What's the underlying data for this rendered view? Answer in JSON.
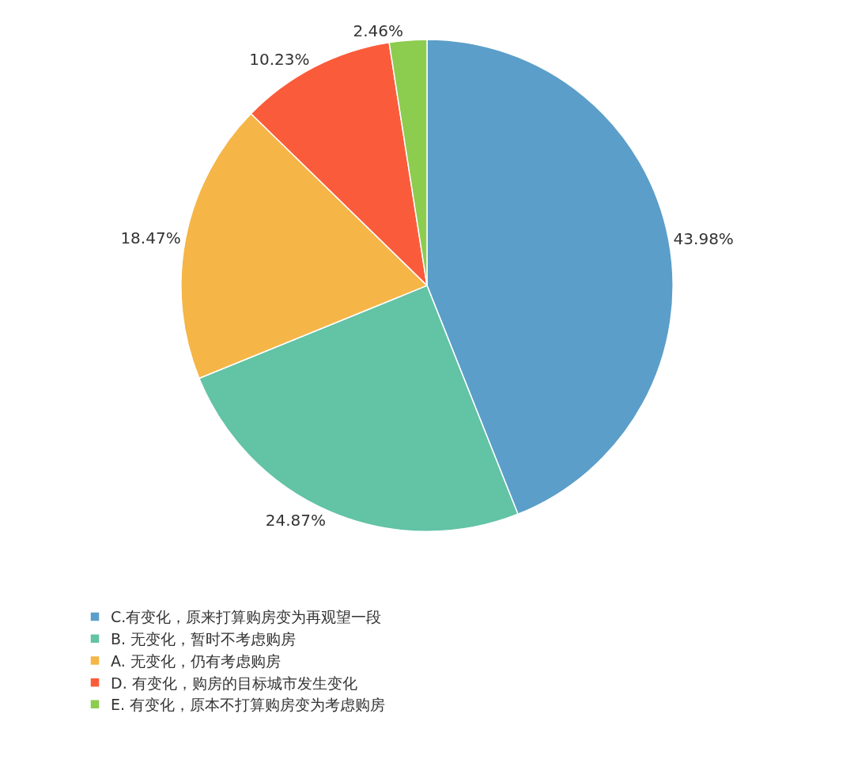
{
  "chart_data": {
    "type": "pie",
    "categories": [
      "C.有变化，原来打算购房变为再观望一段",
      "B. 无变化，暂时不考虑购房",
      "A. 无变化，仍有考虑购房",
      "D. 有变化，购房的目标城市发生变化",
      "E. 有变化，原本不打算购房变为考虑购房"
    ],
    "values": [
      43.98,
      24.87,
      18.47,
      10.23,
      2.46
    ],
    "value_labels": [
      "43.98%",
      "24.87%",
      "18.47%",
      "10.23%",
      "2.46%"
    ],
    "colors": [
      "#5b9ec9",
      "#62c3a5",
      "#f5b547",
      "#fa5c3b",
      "#8ccc4f"
    ],
    "legend": "bottom"
  }
}
